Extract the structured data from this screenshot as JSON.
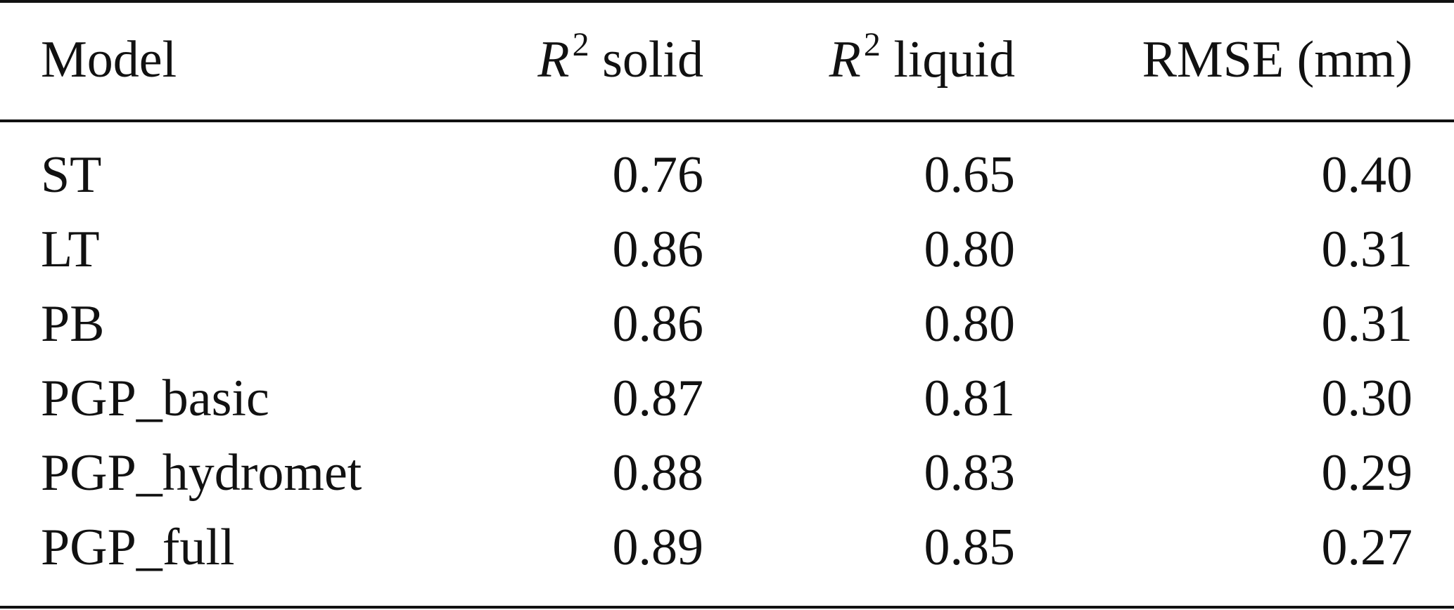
{
  "table": {
    "headers": {
      "model": "Model",
      "solid_symbol": "R",
      "solid_exp": "2",
      "solid_text": " solid",
      "liquid_symbol": "R",
      "liquid_exp": "2",
      "liquid_text": " liquid",
      "rmse": "RMSE (mm)"
    },
    "rows": [
      {
        "model": "ST",
        "solid": "0.76",
        "liquid": "0.65",
        "rmse": "0.40"
      },
      {
        "model": "LT",
        "solid": "0.86",
        "liquid": "0.80",
        "rmse": "0.31"
      },
      {
        "model": "PB",
        "solid": "0.86",
        "liquid": "0.80",
        "rmse": "0.31"
      },
      {
        "model": "PGP_basic",
        "solid": "0.87",
        "liquid": "0.81",
        "rmse": "0.30"
      },
      {
        "model": "PGP_hydromet",
        "solid": "0.88",
        "liquid": "0.83",
        "rmse": "0.29"
      },
      {
        "model": "PGP_full",
        "solid": "0.89",
        "liquid": "0.85",
        "rmse": "0.27"
      }
    ]
  }
}
